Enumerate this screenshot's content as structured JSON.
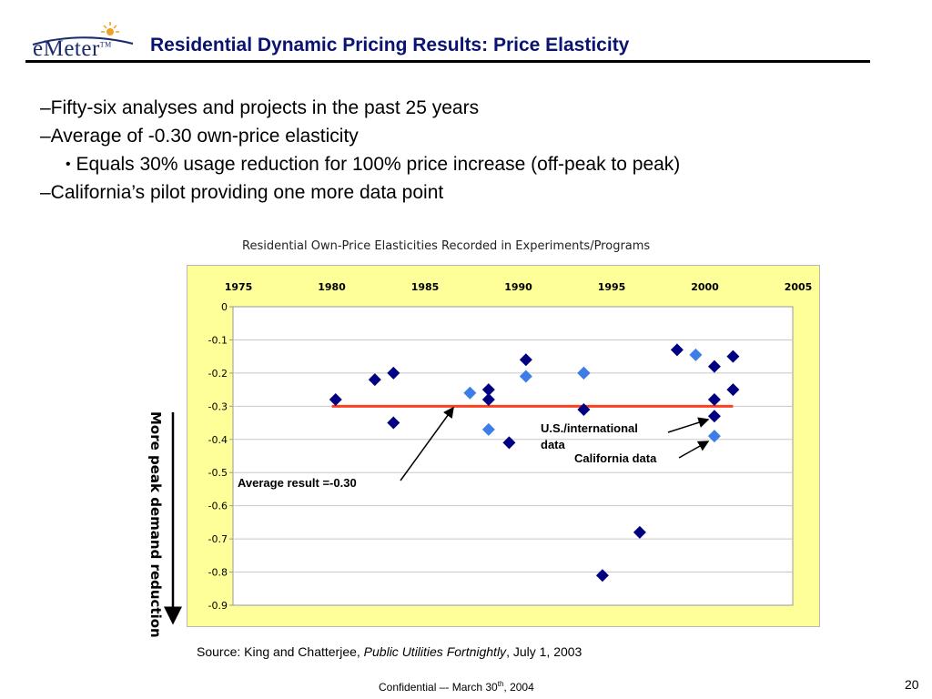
{
  "logo": {
    "text": "eMeter",
    "tm": "TM"
  },
  "slide_title": "Residential Dynamic Pricing Results: Price Elasticity",
  "bullets": [
    "–Fifty-six analyses and projects in the past 25 years",
    "–Average of -0.30 own-price elasticity",
    "Equals 30% usage reduction for 100% price increase (off-peak to peak)",
    "–California’s pilot providing one more data point"
  ],
  "sub_bullet_marker": "•",
  "side_label": "More peak demand reduction",
  "source": {
    "prefix": "Source: King and Chatterjee, ",
    "publication": "Public Utilities Fortnightly",
    "suffix": ", July 1, 2003"
  },
  "footer": {
    "prefix": "Confidential –- March 30",
    "sup": "th",
    "suffix": ", 2004"
  },
  "page_number": "20",
  "colors": {
    "title": "#0a1470",
    "plot_bg": "#ffff99",
    "us_marker": "#000080",
    "ca_marker": "#3d7de8",
    "average_line": "#ff4020"
  },
  "chart_data": {
    "type": "scatter",
    "title": "Residential Own-Price Elasticities Recorded in Experiments/Programs",
    "x_axis": {
      "position": "top",
      "range": [
        1975,
        2005
      ],
      "ticks": [
        1975,
        1980,
        1985,
        1990,
        1995,
        2000,
        2005
      ]
    },
    "y_axis": {
      "range": [
        -0.9,
        0
      ],
      "ticks": [
        0,
        -0.1,
        -0.2,
        -0.3,
        -0.4,
        -0.5,
        -0.6,
        -0.7,
        -0.8,
        -0.9
      ],
      "tick_labels": [
        "0",
        "-0.1",
        "-0.2",
        "-0.3",
        "-0.4",
        "-0.5",
        "-0.6",
        "-0.7",
        "-0.8",
        "-0.9"
      ]
    },
    "grid": "horizontal",
    "series": [
      {
        "name": "U.S./international data",
        "color": "#000080",
        "points": [
          [
            1980.5,
            -0.28
          ],
          [
            1982.6,
            -0.22
          ],
          [
            1983.6,
            -0.2
          ],
          [
            1983.6,
            -0.35
          ],
          [
            1988.7,
            -0.25
          ],
          [
            1988.7,
            -0.28
          ],
          [
            1989.8,
            -0.41
          ],
          [
            1990.7,
            -0.16
          ],
          [
            1993.8,
            -0.2
          ],
          [
            1993.8,
            -0.31
          ],
          [
            1994.8,
            -0.81
          ],
          [
            1996.8,
            -0.68
          ],
          [
            1998.8,
            -0.13
          ],
          [
            2000.8,
            -0.18
          ],
          [
            2000.8,
            -0.28
          ],
          [
            2000.8,
            -0.33
          ],
          [
            2001.8,
            -0.15
          ],
          [
            2001.8,
            -0.25
          ]
        ]
      },
      {
        "name": "California data",
        "color": "#3d7de8",
        "points": [
          [
            1987.7,
            -0.26
          ],
          [
            1988.7,
            -0.37
          ],
          [
            1990.7,
            -0.21
          ],
          [
            1993.8,
            -0.2
          ],
          [
            1999.8,
            -0.145
          ],
          [
            2000.8,
            -0.39
          ]
        ]
      }
    ],
    "average": {
      "value": -0.3,
      "x_range": [
        1980.3,
        2001.8
      ],
      "color": "#ff4020",
      "label": "Average result =-0.30"
    },
    "annotations": [
      "U.S./international data",
      "California data"
    ]
  }
}
